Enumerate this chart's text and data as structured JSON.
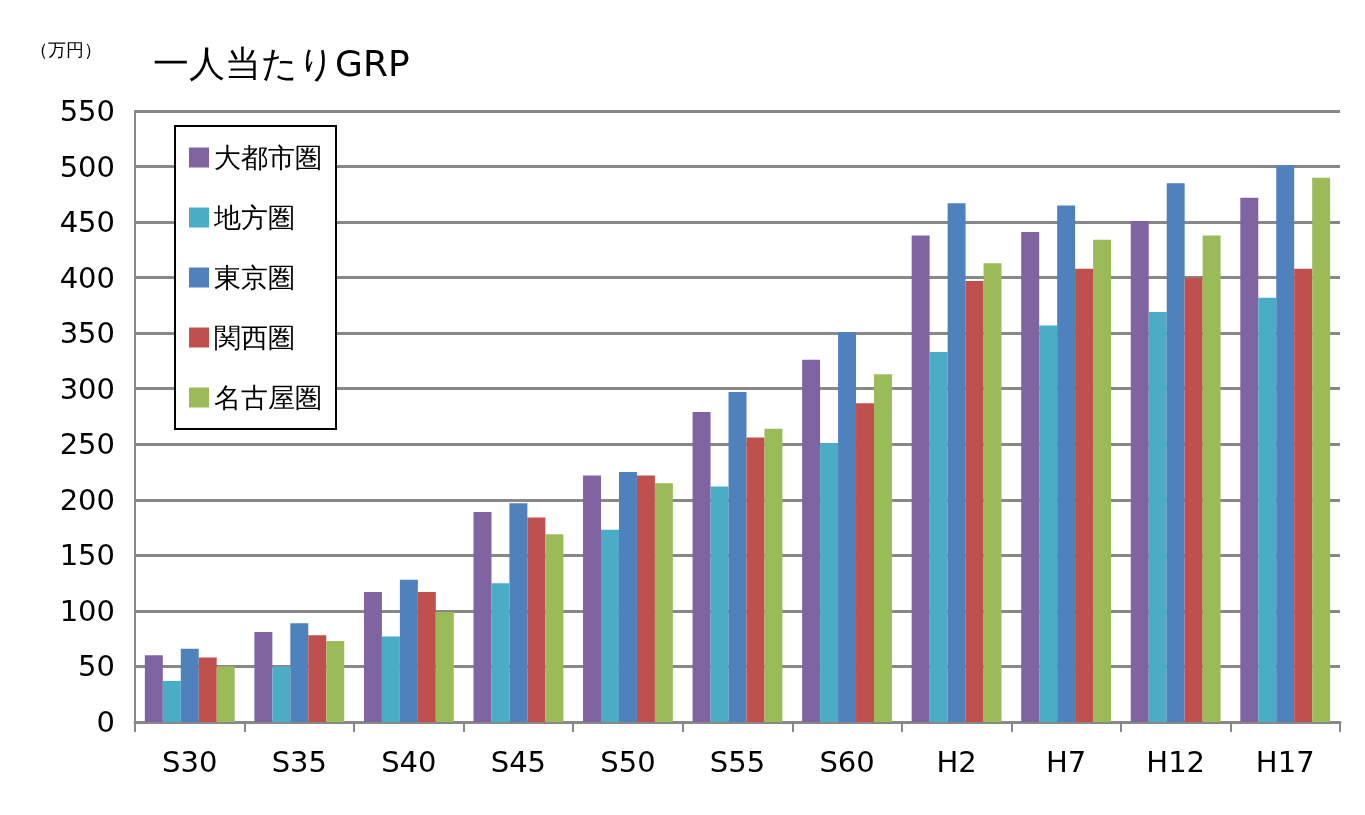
{
  "chart_data": {
    "type": "bar",
    "title": "一人当たりGRP",
    "ylabel": "（万円）",
    "categories": [
      "S30",
      "S35",
      "S40",
      "S45",
      "S50",
      "S55",
      "S60",
      "H2",
      "H7",
      "H12",
      "H17"
    ],
    "series": [
      {
        "name": "大都市圏",
        "color": "#8064a2",
        "values": [
          60,
          81,
          117,
          189,
          222,
          279,
          326,
          438,
          441,
          451,
          472
        ]
      },
      {
        "name": "地方圏",
        "color": "#4bacc6",
        "values": [
          37,
          50,
          77,
          125,
          173,
          212,
          251,
          333,
          357,
          369,
          382
        ]
      },
      {
        "name": "東京圏",
        "color": "#4f81bd",
        "values": [
          66,
          89,
          128,
          197,
          225,
          297,
          351,
          467,
          465,
          485,
          501
        ]
      },
      {
        "name": "関西圏",
        "color": "#c0504d",
        "values": [
          58,
          78,
          117,
          184,
          222,
          256,
          287,
          397,
          408,
          400,
          408
        ]
      },
      {
        "name": "名古屋圏",
        "color": "#9bbb59",
        "values": [
          50,
          73,
          99,
          169,
          215,
          264,
          313,
          413,
          434,
          438,
          490
        ]
      }
    ],
    "ylim": [
      0,
      550
    ],
    "yticks": [
      0,
      50,
      100,
      150,
      200,
      250,
      300,
      350,
      400,
      450,
      500,
      550
    ],
    "grid": "y",
    "legend": "top left"
  }
}
